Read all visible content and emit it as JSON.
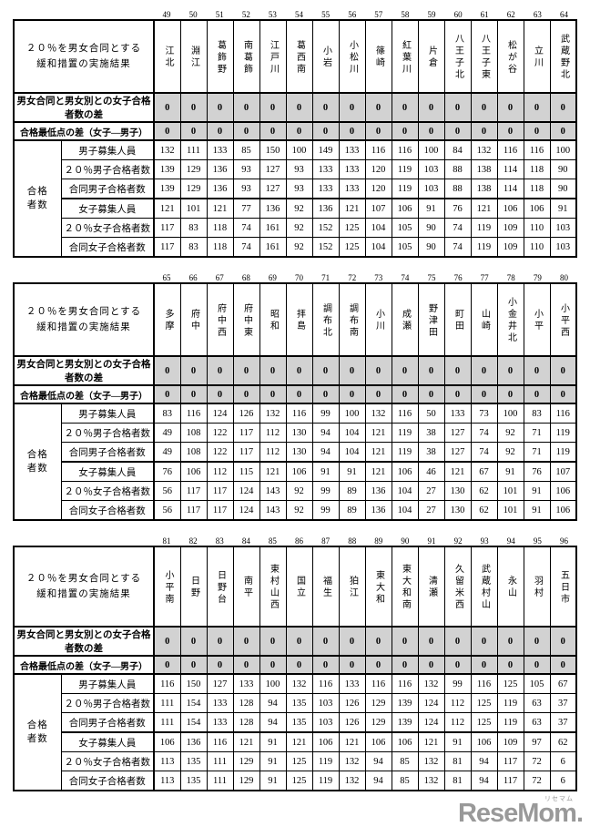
{
  "labels": {
    "table_title_line1": "２０％を男女合同とする",
    "table_title_line2": "緩和措置の実施結果",
    "diff_passers_label": "男女合同と男女別との女子合格者数の差",
    "diff_minscore_label": "合格最低点の差（女子―男子）",
    "group_label_line1": "合格",
    "group_label_line2": "者数",
    "row_labels": [
      "男子募集人員",
      "２０％男子合格者数",
      "合同男子合格者数",
      "女子募集人員",
      "２０％女子合格者数",
      "合同女子合格者数"
    ]
  },
  "tables": [
    {
      "column_numbers": [
        "49",
        "50",
        "51",
        "52",
        "53",
        "54",
        "55",
        "56",
        "57",
        "58",
        "59",
        "60",
        "61",
        "62",
        "63",
        "64"
      ],
      "schools": [
        "江北",
        "淵江",
        "葛飾野",
        "南葛飾",
        "江戸川",
        "葛西南",
        "小岩",
        "小松川",
        "篠崎",
        "紅葉川",
        "片倉",
        "八王子北",
        "八王子東",
        "松が谷",
        "立川",
        "武蔵野北"
      ],
      "diff_passers": [
        0,
        0,
        0,
        0,
        0,
        0,
        0,
        0,
        0,
        0,
        0,
        0,
        0,
        0,
        0,
        0
      ],
      "diff_minscore": [
        0,
        0,
        0,
        0,
        0,
        0,
        0,
        0,
        0,
        0,
        0,
        0,
        0,
        0,
        0,
        0
      ],
      "rows": [
        [
          132,
          111,
          133,
          85,
          150,
          100,
          149,
          133,
          116,
          116,
          100,
          84,
          132,
          116,
          116,
          100
        ],
        [
          139,
          129,
          136,
          93,
          127,
          93,
          133,
          133,
          120,
          119,
          103,
          88,
          138,
          114,
          118,
          90
        ],
        [
          139,
          129,
          136,
          93,
          127,
          93,
          133,
          133,
          120,
          119,
          103,
          88,
          138,
          114,
          118,
          90
        ],
        [
          121,
          101,
          121,
          77,
          136,
          92,
          136,
          121,
          107,
          106,
          91,
          76,
          121,
          106,
          106,
          91
        ],
        [
          117,
          83,
          118,
          74,
          161,
          92,
          152,
          125,
          104,
          105,
          90,
          74,
          119,
          109,
          110,
          103
        ],
        [
          117,
          83,
          118,
          74,
          161,
          92,
          152,
          125,
          104,
          105,
          90,
          74,
          119,
          109,
          110,
          103
        ]
      ]
    },
    {
      "column_numbers": [
        "65",
        "66",
        "67",
        "68",
        "69",
        "70",
        "71",
        "72",
        "73",
        "74",
        "75",
        "76",
        "77",
        "78",
        "79",
        "80"
      ],
      "schools": [
        "多摩",
        "府中",
        "府中西",
        "府中東",
        "昭和",
        "拝島",
        "調布北",
        "調布南",
        "小川",
        "成瀬",
        "野津田",
        "町田",
        "山崎",
        "小金井北",
        "小平",
        "小平西"
      ],
      "diff_passers": [
        0,
        0,
        0,
        0,
        0,
        0,
        0,
        0,
        0,
        0,
        0,
        0,
        0,
        0,
        0,
        0
      ],
      "diff_minscore": [
        0,
        0,
        0,
        0,
        0,
        0,
        0,
        0,
        0,
        0,
        0,
        0,
        0,
        0,
        0,
        0
      ],
      "rows": [
        [
          83,
          116,
          124,
          126,
          132,
          116,
          99,
          100,
          132,
          116,
          50,
          133,
          73,
          100,
          83,
          116
        ],
        [
          49,
          108,
          122,
          117,
          112,
          130,
          94,
          104,
          121,
          119,
          38,
          127,
          74,
          92,
          71,
          119
        ],
        [
          49,
          108,
          122,
          117,
          112,
          130,
          94,
          104,
          121,
          119,
          38,
          127,
          74,
          92,
          71,
          119
        ],
        [
          76,
          106,
          112,
          115,
          121,
          106,
          91,
          91,
          121,
          106,
          46,
          121,
          67,
          91,
          76,
          107
        ],
        [
          56,
          117,
          117,
          124,
          143,
          92,
          99,
          89,
          136,
          104,
          27,
          130,
          62,
          101,
          91,
          106
        ],
        [
          56,
          117,
          117,
          124,
          143,
          92,
          99,
          89,
          136,
          104,
          27,
          130,
          62,
          101,
          91,
          106
        ]
      ]
    },
    {
      "column_numbers": [
        "81",
        "82",
        "83",
        "84",
        "85",
        "86",
        "87",
        "88",
        "89",
        "90",
        "91",
        "92",
        "93",
        "94",
        "95",
        "96"
      ],
      "schools": [
        "小平南",
        "日野",
        "日野台",
        "南平",
        "東村山西",
        "国立",
        "福生",
        "狛江",
        "東大和",
        "東大和南",
        "清瀬",
        "久留米西",
        "武蔵村山",
        "永山",
        "羽村",
        "五日市"
      ],
      "diff_passers": [
        0,
        0,
        0,
        0,
        0,
        0,
        0,
        0,
        0,
        0,
        0,
        0,
        0,
        0,
        0,
        0
      ],
      "diff_minscore": [
        0,
        0,
        0,
        0,
        0,
        0,
        0,
        0,
        0,
        0,
        0,
        0,
        0,
        0,
        0,
        0
      ],
      "rows": [
        [
          116,
          150,
          127,
          133,
          100,
          132,
          116,
          133,
          116,
          116,
          132,
          99,
          116,
          125,
          105,
          67
        ],
        [
          111,
          154,
          133,
          128,
          94,
          135,
          103,
          126,
          129,
          139,
          124,
          112,
          125,
          119,
          63,
          37
        ],
        [
          111,
          154,
          133,
          128,
          94,
          135,
          103,
          126,
          129,
          139,
          124,
          112,
          125,
          119,
          63,
          37
        ],
        [
          106,
          136,
          116,
          121,
          91,
          121,
          106,
          121,
          106,
          106,
          121,
          91,
          106,
          109,
          97,
          62
        ],
        [
          113,
          135,
          111,
          129,
          91,
          125,
          119,
          132,
          94,
          85,
          132,
          81,
          94,
          117,
          72,
          6
        ],
        [
          113,
          135,
          111,
          129,
          91,
          125,
          119,
          132,
          94,
          85,
          132,
          81,
          94,
          117,
          72,
          6
        ]
      ]
    }
  ],
  "colors": {
    "zero_row_bg": "#d2d2d2",
    "border": "#000000",
    "logo_gray": "#999999"
  },
  "logo": {
    "text": "ReseMom",
    "dot": ".",
    "ruby": "リセマム"
  }
}
